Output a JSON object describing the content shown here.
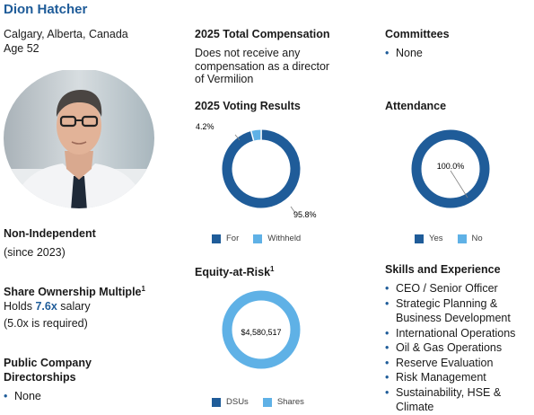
{
  "profile": {
    "name": "Dion Hatcher",
    "location": "Calgary, Alberta, Canada",
    "age": "Age 52",
    "independence": "Non-Independent",
    "since": "(since 2023)",
    "ownership_heading": "Share Ownership Multiple",
    "ownership_sup": "1",
    "holds_prefix": "Holds ",
    "holds_value": "7.6x",
    "holds_suffix": " salary",
    "required": "(5.0x is required)",
    "directorships_heading_1": "Public Company",
    "directorships_heading_2": "Directorships",
    "directorships": [
      "None"
    ]
  },
  "compensation": {
    "heading": "2025 Total Compensation",
    "lines": [
      "Does not receive any",
      "compensation as a director",
      "of Vermilion"
    ]
  },
  "committees": {
    "heading": "Committees",
    "items": [
      "None"
    ]
  },
  "skills": {
    "heading": "Skills and Experience",
    "items": [
      [
        "CEO / Senior Officer"
      ],
      [
        "Strategic Planning &",
        "Business Development"
      ],
      [
        "International Operations"
      ],
      [
        "Oil & Gas Operations"
      ],
      [
        "Reserve Evaluation"
      ],
      [
        "Risk Management"
      ],
      [
        "Sustainability, HSE &",
        "Climate"
      ]
    ]
  },
  "colors": {
    "dark_blue": "#1f5c99",
    "light_blue": "#5fb1e6",
    "name_blue": "#1f5c99"
  },
  "chart_data": [
    {
      "type": "pie",
      "title": "2025 Voting Results",
      "categories": [
        "For",
        "Withheld"
      ],
      "values": [
        95.8,
        4.2
      ],
      "labels": [
        "95.8%",
        "4.2%"
      ],
      "colors": [
        "#1f5c99",
        "#5fb1e6"
      ],
      "legend": "bottom"
    },
    {
      "type": "pie",
      "title": "Attendance",
      "categories": [
        "Yes",
        "No"
      ],
      "values": [
        100.0,
        0.0
      ],
      "labels": [
        "100.0%"
      ],
      "colors": [
        "#1f5c99",
        "#5fb1e6"
      ],
      "legend": "bottom"
    },
    {
      "type": "pie",
      "title": "Equity-at-Risk",
      "title_sup": "1",
      "categories": [
        "DSUs",
        "Shares"
      ],
      "values": [
        0,
        4580517
      ],
      "labels": [
        "$4,580,517"
      ],
      "colors": [
        "#1f5c99",
        "#5fb1e6"
      ],
      "legend": "bottom"
    }
  ]
}
